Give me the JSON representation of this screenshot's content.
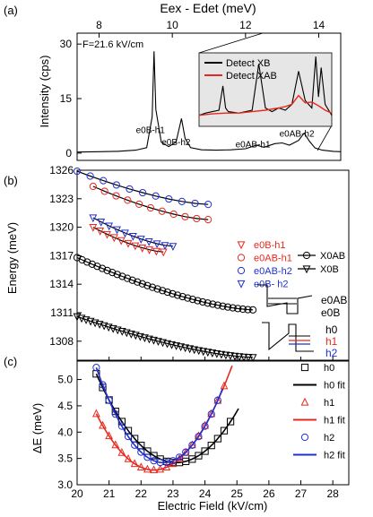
{
  "panel_labels": [
    "(a)",
    "(b)",
    "(c)"
  ],
  "chart_data": [
    {
      "type": "line",
      "panel": "(a)",
      "xlabel_top": "Eex - Edet (meV)",
      "ylabel": "Intensity (cps)",
      "xlim": [
        7.4,
        14.6
      ],
      "xticks": [
        8,
        10,
        12,
        14
      ],
      "ylim": [
        -2,
        33
      ],
      "yticks": [
        0,
        15,
        30
      ],
      "annotation": "F=21.6 kV/cm",
      "peak_labels": [
        {
          "text": "e0B-h1",
          "x": 9.5,
          "y": 5.5
        },
        {
          "text": "e0B-h2",
          "x": 10.2,
          "y": 2.2
        },
        {
          "text": "e0AB-h1",
          "x": 12.3,
          "y": 1.6
        },
        {
          "text": "e0AB-h2",
          "x": 13.5,
          "y": 4.5
        }
      ],
      "spectrum": {
        "x": [
          7.4,
          8.0,
          8.5,
          9.0,
          9.3,
          9.45,
          9.5,
          9.55,
          9.7,
          9.9,
          10.1,
          10.25,
          10.35,
          10.5,
          10.8,
          11.2,
          11.6,
          12.0,
          12.3,
          12.5,
          12.8,
          13.0,
          13.2,
          13.45,
          13.6,
          13.75,
          13.9,
          14.1,
          14.4,
          14.6
        ],
        "y": [
          0.3,
          0.4,
          0.5,
          0.8,
          1.5,
          10,
          28,
          12,
          3,
          1.8,
          3,
          9.5,
          4,
          1.5,
          0.9,
          0.8,
          0.9,
          1.2,
          2.2,
          1.6,
          2.6,
          2.8,
          2.2,
          3.5,
          5.5,
          3.2,
          1.4,
          0.8,
          0.5,
          0.4
        ]
      },
      "inset": {
        "legend": [
          "Detect XB",
          "Detect XAB"
        ],
        "series": [
          {
            "name": "Detect XB",
            "color": "#000000",
            "x": [
              0,
              0.05,
              0.1,
              0.15,
              0.18,
              0.2,
              0.22,
              0.3,
              0.4,
              0.45,
              0.5,
              0.55,
              0.6,
              0.65,
              0.7,
              0.75,
              0.8,
              0.85,
              0.88,
              0.9,
              0.92,
              0.95,
              1.0
            ],
            "y": [
              0.15,
              0.18,
              0.2,
              0.22,
              0.55,
              0.25,
              0.2,
              0.18,
              0.22,
              0.85,
              0.25,
              0.2,
              0.25,
              0.22,
              0.3,
              0.75,
              0.35,
              0.25,
              0.95,
              0.4,
              0.8,
              0.3,
              0.15
            ]
          },
          {
            "name": "Detect XAB",
            "color": "#e8281e",
            "x": [
              0,
              0.1,
              0.2,
              0.3,
              0.4,
              0.5,
              0.6,
              0.65,
              0.7,
              0.75,
              0.8,
              0.85,
              0.9,
              0.95,
              1.0
            ],
            "y": [
              0.15,
              0.17,
              0.18,
              0.18,
              0.2,
              0.22,
              0.25,
              0.27,
              0.3,
              0.42,
              0.32,
              0.33,
              0.28,
              0.22,
              0.18
            ]
          }
        ]
      }
    },
    {
      "type": "scatter",
      "panel": "(b)",
      "ylabel": "Energy (meV)",
      "xlim": [
        20,
        28.5
      ],
      "ylim": [
        1306,
        1326
      ],
      "yticks": [
        1308,
        1311,
        1314,
        1317,
        1320,
        1323,
        1326
      ],
      "legend_left": [
        {
          "label": "e0B-h1",
          "color": "#e8281e",
          "marker": "triangle-down"
        },
        {
          "label": "e0AB-h1",
          "color": "#e8281e",
          "marker": "circle"
        },
        {
          "label": "e0AB-h2",
          "color": "#2030d0",
          "marker": "circle"
        },
        {
          "label": "e0B- h2",
          "color": "#2030d0",
          "marker": "triangle-down"
        }
      ],
      "legend_right": [
        {
          "label": "X0AB",
          "marker": "circle"
        },
        {
          "label": "X0B",
          "marker": "triangle-down"
        }
      ],
      "band_labels": [
        "e0AB",
        "e0B",
        "h0",
        "h1",
        "h2"
      ],
      "series": [
        {
          "name": "X0AB",
          "color": "#000000",
          "marker": "circle",
          "x_start": 20.0,
          "x_end": 25.5,
          "y_start": 1316.8,
          "y_end": 1311.3
        },
        {
          "name": "X0B",
          "color": "#000000",
          "marker": "triangle-down",
          "x_start": 20.0,
          "x_end": 25.5,
          "y_start": 1310.6,
          "y_end": 1306.3
        },
        {
          "name": "e0AB-h2",
          "color": "#2030d0",
          "marker": "circle",
          "x_start": 20.0,
          "x_end": 24.1,
          "y_start": 1325.9,
          "y_end": 1322.4
        },
        {
          "name": "e0AB-h1",
          "color": "#e8281e",
          "marker": "circle",
          "x_start": 20.5,
          "x_end": 24.1,
          "y_start": 1324.3,
          "y_end": 1320.8
        },
        {
          "name": "e0B- h2",
          "color": "#2030d0",
          "marker": "triangle-down",
          "x_start": 20.5,
          "x_end": 23.0,
          "y_start": 1321.0,
          "y_end": 1318.0
        },
        {
          "name": "e0B-h1",
          "color": "#e8281e",
          "marker": "triangle-down",
          "x_start": 20.5,
          "x_end": 22.7,
          "y_start": 1320.0,
          "y_end": 1317.4
        }
      ]
    },
    {
      "type": "scatter",
      "panel": "(c)",
      "xlabel": "Electric Field (kV/cm)",
      "ylabel": "ΔE (meV)",
      "xlim": [
        20,
        28.5
      ],
      "xticks": [
        20,
        21,
        22,
        23,
        24,
        25,
        26,
        27,
        28
      ],
      "ylim": [
        3.0,
        5.35
      ],
      "yticks": [
        3.0,
        3.5,
        4.0,
        4.5,
        5.0
      ],
      "legend": [
        "h0",
        "h0 fit",
        "h1",
        "h1 fit",
        "h2",
        "h2 fit"
      ],
      "series": [
        {
          "name": "h0",
          "color": "#000000",
          "marker": "square",
          "vertex_x": 23.1,
          "vertex_y": 3.42,
          "curvature": 0.27,
          "x_range": [
            20.6,
            24.9
          ]
        },
        {
          "name": "h1",
          "color": "#e8281e",
          "marker": "triangle-up",
          "vertex_x": 22.4,
          "vertex_y": 3.28,
          "curvature": 0.33,
          "x_range": [
            20.6,
            24.7
          ]
        },
        {
          "name": "h2",
          "color": "#2030d0",
          "marker": "circle",
          "vertex_x": 22.7,
          "vertex_y": 3.42,
          "curvature": 0.41,
          "x_range": [
            20.6,
            24.4
          ]
        }
      ]
    }
  ]
}
